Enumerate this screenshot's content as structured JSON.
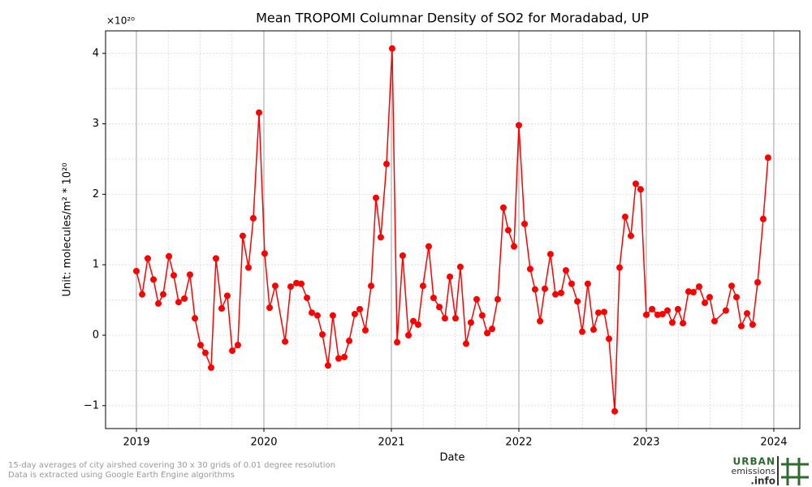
{
  "chart_data": {
    "type": "line",
    "title": "Mean TROPOMI Columnar Density of SO2 for Moradabad, UP",
    "y_offset_label": "×10²⁰",
    "x_label": "Date",
    "y_label": "Unit: molecules/m² * 10²⁰",
    "x": [
      2019.0,
      2019.045,
      2019.089,
      2019.134,
      2019.172,
      2019.21,
      2019.255,
      2019.293,
      2019.331,
      2019.376,
      2019.42,
      2019.459,
      2019.503,
      2019.541,
      2019.586,
      2019.624,
      2019.669,
      2019.713,
      2019.752,
      2019.796,
      2019.834,
      2019.879,
      2019.917,
      2019.962,
      2020.006,
      2020.045,
      2020.089,
      2020.166,
      2020.21,
      2020.255,
      2020.293,
      2020.338,
      2020.376,
      2020.42,
      2020.459,
      2020.503,
      2020.541,
      2020.586,
      2020.631,
      2020.669,
      2020.713,
      2020.752,
      2020.796,
      2020.841,
      2020.879,
      2020.917,
      2020.962,
      2021.006,
      2021.045,
      2021.089,
      2021.134,
      2021.172,
      2021.21,
      2021.248,
      2021.293,
      2021.331,
      2021.376,
      2021.42,
      2021.459,
      2021.503,
      2021.541,
      2021.586,
      2021.624,
      2021.669,
      2021.713,
      2021.752,
      2021.79,
      2021.834,
      2021.879,
      2021.917,
      2021.962,
      2022.0,
      2022.045,
      2022.089,
      2022.127,
      2022.166,
      2022.204,
      2022.248,
      2022.287,
      2022.331,
      2022.369,
      2022.414,
      2022.459,
      2022.497,
      2022.541,
      2022.586,
      2022.624,
      2022.669,
      2022.707,
      2022.752,
      2022.79,
      2022.834,
      2022.879,
      2022.917,
      2022.955,
      2023.0,
      2023.045,
      2023.089,
      2023.127,
      2023.166,
      2023.204,
      2023.248,
      2023.287,
      2023.331,
      2023.369,
      2023.414,
      2023.459,
      2023.497,
      2023.535,
      2023.624,
      2023.669,
      2023.707,
      2023.745,
      2023.79,
      2023.834,
      2023.873,
      2023.917,
      2023.955
    ],
    "series": [
      {
        "color": "#ff0000",
        "values": [
          0.91,
          0.58,
          1.09,
          0.79,
          0.45,
          0.58,
          1.12,
          0.85,
          0.47,
          0.52,
          0.86,
          0.24,
          -0.14,
          -0.25,
          -0.46,
          1.09,
          0.38,
          0.56,
          -0.22,
          -0.14,
          1.41,
          0.96,
          1.66,
          3.16,
          1.16,
          0.39,
          0.7,
          -0.09,
          0.69,
          0.74,
          0.73,
          0.53,
          0.32,
          0.28,
          0.01,
          -0.43,
          0.28,
          -0.33,
          -0.31,
          -0.08,
          0.3,
          0.37,
          0.07,
          0.7,
          1.95,
          1.39,
          2.43,
          4.07,
          -0.1,
          1.13,
          0.0,
          0.2,
          0.15,
          0.7,
          1.26,
          0.53,
          0.4,
          0.24,
          0.83,
          0.24,
          0.97,
          -0.12,
          0.18,
          0.51,
          0.28,
          0.03,
          0.09,
          0.51,
          1.81,
          1.49,
          1.26,
          2.98,
          1.58,
          0.94,
          0.65,
          0.2,
          0.66,
          1.15,
          0.58,
          0.6,
          0.92,
          0.73,
          0.48,
          0.05,
          0.73,
          0.08,
          0.32,
          0.33,
          -0.05,
          -1.08,
          0.96,
          1.68,
          1.41,
          2.15,
          2.07,
          0.29,
          0.37,
          0.29,
          0.3,
          0.35,
          0.18,
          0.37,
          0.17,
          0.62,
          0.61,
          0.69,
          0.46,
          0.54,
          0.2,
          0.35,
          0.7,
          0.54,
          0.13,
          0.31,
          0.15,
          0.75,
          1.65,
          2.52
        ]
      }
    ],
    "xlim": [
      2018.758,
      2024.204
    ],
    "ylim": [
      -1.325,
      4.32
    ],
    "xticks": [
      2019,
      2020,
      2021,
      2022,
      2023,
      2024
    ],
    "yticks": [
      {
        "value": -1,
        "label": "−1"
      },
      0,
      1,
      2,
      3,
      4
    ],
    "grid": true
  },
  "footer": {
    "lines": [
      "15-day averages of city airshed covering 30 x 30 grids of 0.01 degree resolution",
      "Data is extracted using Google Earth Engine algorithms"
    ]
  },
  "logo": {
    "line1": "URBAN",
    "line2": "emissions",
    "line3": ".info"
  }
}
